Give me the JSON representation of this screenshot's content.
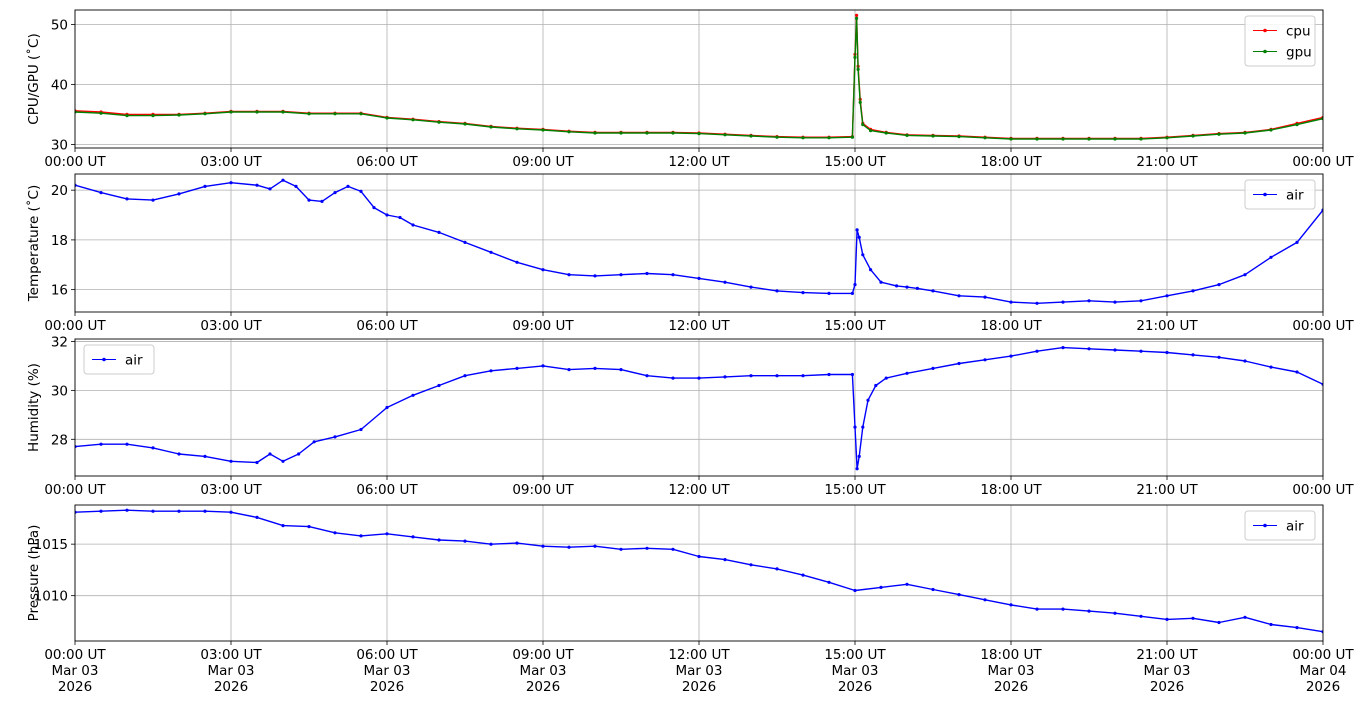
{
  "chart_data": [
    {
      "type": "line",
      "ylabel": "CPU/GPU (˚C)",
      "xlim": [
        0,
        24
      ],
      "ylim": [
        29.4,
        52.4
      ],
      "yticks": [
        30,
        40,
        50
      ],
      "xtick_labels": [
        "00:00 UT",
        "03:00 UT",
        "06:00 UT",
        "09:00 UT",
        "12:00 UT",
        "15:00 UT",
        "18:00 UT",
        "21:00 UT",
        "00:00 UT"
      ],
      "grid": true,
      "legend_position": "top-right",
      "series": [
        {
          "name": "cpu",
          "color": "#ff0000",
          "x": [
            0,
            0.5,
            1,
            1.5,
            2,
            2.5,
            3,
            3.5,
            4,
            4.5,
            5,
            5.5,
            6,
            6.5,
            7,
            7.5,
            8,
            8.5,
            9,
            9.5,
            10,
            10.5,
            11,
            11.5,
            12,
            12.5,
            13,
            13.5,
            14,
            14.5,
            14.95,
            15.0,
            15.03,
            15.06,
            15.1,
            15.15,
            15.3,
            15.6,
            16,
            16.5,
            17,
            17.5,
            18,
            18.5,
            19,
            19.5,
            20,
            20.5,
            21,
            21.5,
            22,
            22.5,
            23,
            23.5,
            24
          ],
          "y": [
            35.6,
            35.4,
            35.0,
            35.0,
            35.0,
            35.2,
            35.5,
            35.5,
            35.5,
            35.2,
            35.2,
            35.2,
            34.5,
            34.2,
            33.8,
            33.5,
            33.0,
            32.7,
            32.5,
            32.2,
            32.0,
            32.0,
            32.0,
            32.0,
            31.9,
            31.7,
            31.5,
            31.3,
            31.2,
            31.2,
            31.3,
            45.0,
            51.5,
            43.0,
            37.5,
            33.5,
            32.5,
            32.0,
            31.6,
            31.5,
            31.4,
            31.2,
            31.0,
            31.0,
            31.0,
            31.0,
            31.0,
            31.0,
            31.2,
            31.5,
            31.8,
            32.0,
            32.5,
            33.5,
            34.5
          ]
        },
        {
          "name": "gpu",
          "color": "#008000",
          "x": [
            0,
            0.5,
            1,
            1.5,
            2,
            2.5,
            3,
            3.5,
            4,
            4.5,
            5,
            5.5,
            6,
            6.5,
            7,
            7.5,
            8,
            8.5,
            9,
            9.5,
            10,
            10.5,
            11,
            11.5,
            12,
            12.5,
            13,
            13.5,
            14,
            14.5,
            14.95,
            15.0,
            15.03,
            15.06,
            15.1,
            15.15,
            15.3,
            15.6,
            16,
            16.5,
            17,
            17.5,
            18,
            18.5,
            19,
            19.5,
            20,
            20.5,
            21,
            21.5,
            22,
            22.5,
            23,
            23.5,
            24
          ],
          "y": [
            35.4,
            35.2,
            34.8,
            34.8,
            34.9,
            35.1,
            35.4,
            35.4,
            35.4,
            35.1,
            35.1,
            35.1,
            34.4,
            34.1,
            33.7,
            33.4,
            32.9,
            32.6,
            32.4,
            32.1,
            31.9,
            31.9,
            31.9,
            31.9,
            31.8,
            31.6,
            31.4,
            31.2,
            31.1,
            31.1,
            31.2,
            44.5,
            51.0,
            42.5,
            37.0,
            33.3,
            32.3,
            31.9,
            31.5,
            31.4,
            31.3,
            31.1,
            30.9,
            30.9,
            30.9,
            30.9,
            30.9,
            30.9,
            31.1,
            31.4,
            31.7,
            31.9,
            32.4,
            33.3,
            34.3
          ]
        }
      ]
    },
    {
      "type": "line",
      "ylabel": "Temperature (˚C)",
      "xlim": [
        0,
        24
      ],
      "ylim": [
        15.1,
        20.65
      ],
      "yticks": [
        16,
        18,
        20
      ],
      "xtick_labels": [
        "00:00 UT",
        "03:00 UT",
        "06:00 UT",
        "09:00 UT",
        "12:00 UT",
        "15:00 UT",
        "18:00 UT",
        "21:00 UT",
        "00:00 UT"
      ],
      "grid": true,
      "legend_position": "top-right",
      "series": [
        {
          "name": "air",
          "color": "#0000ff",
          "x": [
            0,
            0.5,
            1,
            1.5,
            2,
            2.5,
            3,
            3.5,
            3.75,
            4.0,
            4.25,
            4.5,
            4.75,
            5.0,
            5.25,
            5.5,
            5.75,
            6.0,
            6.25,
            6.5,
            7,
            7.5,
            8,
            8.5,
            9,
            9.5,
            10,
            10.5,
            11,
            11.5,
            12,
            12.5,
            13,
            13.5,
            14,
            14.5,
            14.95,
            15.0,
            15.04,
            15.08,
            15.15,
            15.3,
            15.5,
            15.8,
            16.0,
            16.2,
            16.5,
            17,
            17.5,
            18,
            18.5,
            19,
            19.5,
            20,
            20.5,
            21,
            21.5,
            22,
            22.5,
            23,
            23.5,
            24
          ],
          "y": [
            20.2,
            19.9,
            19.65,
            19.6,
            19.85,
            20.15,
            20.3,
            20.2,
            20.05,
            20.4,
            20.15,
            19.6,
            19.55,
            19.9,
            20.15,
            19.95,
            19.3,
            19.0,
            18.9,
            18.6,
            18.3,
            17.9,
            17.5,
            17.1,
            16.8,
            16.6,
            16.55,
            16.6,
            16.65,
            16.6,
            16.45,
            16.3,
            16.1,
            15.95,
            15.88,
            15.85,
            15.85,
            16.2,
            18.4,
            18.1,
            17.4,
            16.8,
            16.3,
            16.15,
            16.1,
            16.05,
            15.95,
            15.75,
            15.7,
            15.5,
            15.45,
            15.5,
            15.55,
            15.5,
            15.55,
            15.75,
            15.95,
            16.2,
            16.6,
            17.3,
            17.9,
            19.2
          ]
        }
      ]
    },
    {
      "type": "line",
      "ylabel": "Humidity (%)",
      "xlim": [
        0,
        24
      ],
      "ylim": [
        26.5,
        32.1
      ],
      "yticks": [
        28,
        30,
        32
      ],
      "xtick_labels": [
        "00:00 UT",
        "03:00 UT",
        "06:00 UT",
        "09:00 UT",
        "12:00 UT",
        "15:00 UT",
        "18:00 UT",
        "21:00 UT",
        "00:00 UT"
      ],
      "grid": true,
      "legend_position": "top-left",
      "series": [
        {
          "name": "air",
          "color": "#0000ff",
          "x": [
            0,
            0.5,
            1,
            1.5,
            2,
            2.5,
            3,
            3.5,
            3.75,
            4.0,
            4.3,
            4.6,
            5.0,
            5.5,
            6,
            6.5,
            7,
            7.5,
            8,
            8.5,
            9,
            9.5,
            10,
            10.5,
            11,
            11.5,
            12,
            12.5,
            13,
            13.5,
            14,
            14.5,
            14.95,
            15.0,
            15.04,
            15.08,
            15.15,
            15.25,
            15.4,
            15.6,
            16,
            16.5,
            17,
            17.5,
            18,
            18.5,
            19,
            19.5,
            20,
            20.5,
            21,
            21.5,
            22,
            22.5,
            23,
            23.5,
            24
          ],
          "y": [
            27.7,
            27.8,
            27.8,
            27.65,
            27.4,
            27.3,
            27.1,
            27.05,
            27.4,
            27.1,
            27.4,
            27.9,
            28.1,
            28.4,
            29.3,
            29.8,
            30.2,
            30.6,
            30.8,
            30.9,
            31.0,
            30.85,
            30.9,
            30.85,
            30.6,
            30.5,
            30.5,
            30.55,
            30.6,
            30.6,
            30.6,
            30.65,
            30.65,
            28.5,
            26.8,
            27.3,
            28.5,
            29.6,
            30.2,
            30.5,
            30.7,
            30.9,
            31.1,
            31.25,
            31.4,
            31.6,
            31.75,
            31.7,
            31.65,
            31.6,
            31.55,
            31.45,
            31.35,
            31.2,
            30.95,
            30.75,
            30.25
          ]
        }
      ]
    },
    {
      "type": "line",
      "ylabel": "Pressure (hPa)",
      "xlim": [
        0,
        24
      ],
      "ylim": [
        1005.6,
        1018.8
      ],
      "yticks": [
        1010,
        1015
      ],
      "xtick_labels": [
        "00:00 UT\nMar 03\n2026",
        "03:00 UT\nMar 03\n2026",
        "06:00 UT\nMar 03\n2026",
        "09:00 UT\nMar 03\n2026",
        "12:00 UT\nMar 03\n2026",
        "15:00 UT\nMar 03\n2026",
        "18:00 UT\nMar 03\n2026",
        "21:00 UT\nMar 03\n2026",
        "00:00 UT\nMar 04\n2026"
      ],
      "grid": true,
      "legend_position": "top-right",
      "series": [
        {
          "name": "air",
          "color": "#0000ff",
          "x": [
            0,
            0.5,
            1,
            1.5,
            2,
            2.5,
            3,
            3.5,
            4,
            4.5,
            5,
            5.5,
            6,
            6.5,
            7,
            7.5,
            8,
            8.5,
            9,
            9.5,
            10,
            10.5,
            11,
            11.5,
            12,
            12.5,
            13,
            13.5,
            14,
            14.5,
            15,
            15.5,
            16,
            16.5,
            17,
            17.5,
            18,
            18.5,
            19,
            19.5,
            20,
            20.5,
            21,
            21.5,
            22,
            22.5,
            23,
            23.5,
            24
          ],
          "y": [
            1018.1,
            1018.2,
            1018.3,
            1018.2,
            1018.2,
            1018.2,
            1018.1,
            1017.6,
            1016.8,
            1016.7,
            1016.1,
            1015.8,
            1016.0,
            1015.7,
            1015.4,
            1015.3,
            1015.0,
            1015.1,
            1014.8,
            1014.7,
            1014.8,
            1014.5,
            1014.6,
            1014.5,
            1013.8,
            1013.5,
            1013.0,
            1012.6,
            1012.0,
            1011.3,
            1010.5,
            1010.8,
            1011.1,
            1010.6,
            1010.1,
            1009.6,
            1009.1,
            1008.7,
            1008.7,
            1008.5,
            1008.3,
            1008.0,
            1007.7,
            1007.8,
            1007.4,
            1007.9,
            1007.2,
            1006.9,
            1006.5
          ]
        }
      ]
    }
  ]
}
